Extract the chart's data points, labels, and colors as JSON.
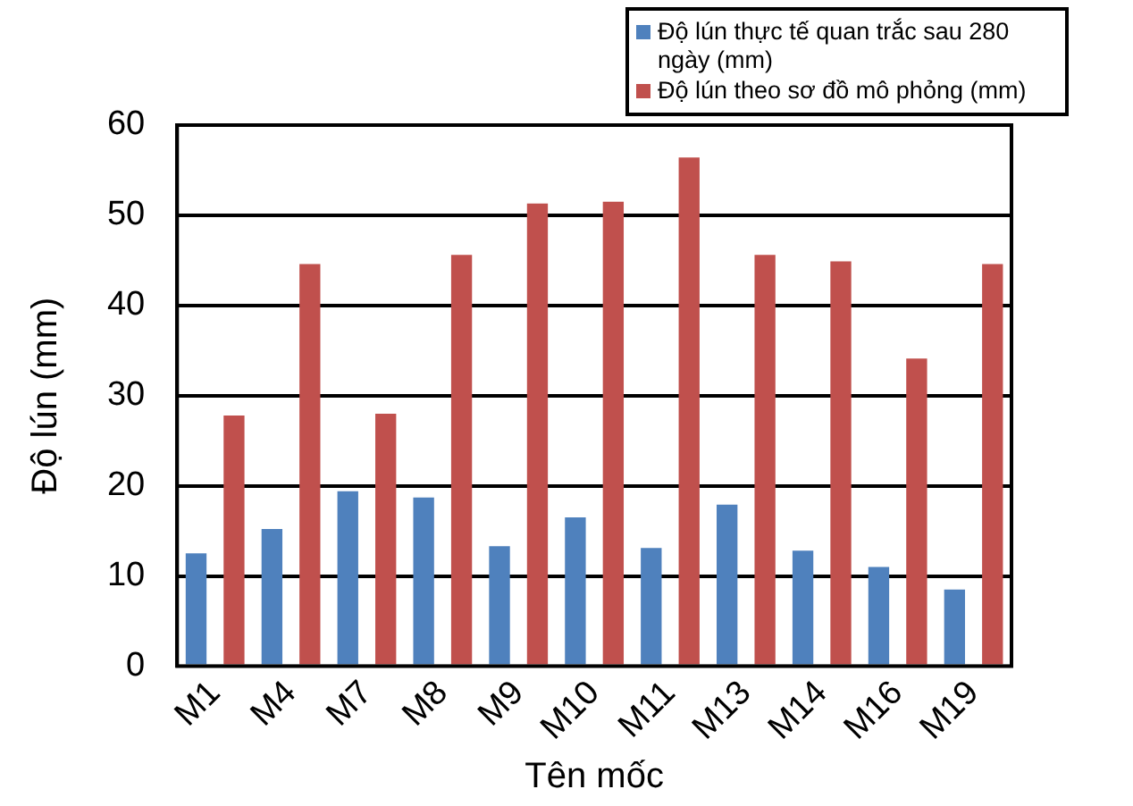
{
  "chart_data": {
    "type": "bar",
    "xlabel": "Tên mốc",
    "ylabel": "Độ lún (mm)",
    "categories": [
      "M1",
      "M4",
      "M7",
      "M8",
      "M9",
      "M10",
      "M11",
      "M13",
      "M14",
      "M16",
      "M19"
    ],
    "series": [
      {
        "name": "Độ lún thực tế quan trắc sau 280 ngày (mm)",
        "color": "#4f81bd",
        "values": [
          12.5,
          15.2,
          19.4,
          18.7,
          13.3,
          16.5,
          13.1,
          17.9,
          12.8,
          11.0,
          8.5
        ]
      },
      {
        "name": "Độ lún theo sơ đồ mô phỏng (mm)",
        "color": "#c0504d",
        "values": [
          27.8,
          44.6,
          28.0,
          45.6,
          51.3,
          51.5,
          56.4,
          45.6,
          44.9,
          34.1,
          44.6
        ]
      }
    ],
    "ylim": [
      0,
      60
    ],
    "yticks": [
      0,
      10,
      20,
      30,
      40,
      50,
      60
    ],
    "grid": "y",
    "legend": "top right"
  }
}
